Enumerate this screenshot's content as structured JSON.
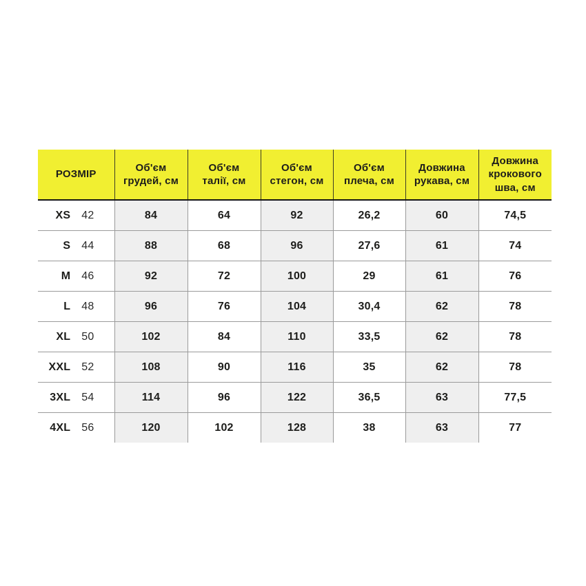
{
  "table": {
    "columns": [
      {
        "label": "РОЗМІР"
      },
      {
        "label": "Об'єм\nгрудей, см"
      },
      {
        "label": "Об'єм\nталії, см"
      },
      {
        "label": "Об'єм\nстегон, см"
      },
      {
        "label": "Об'єм\nплеча, см"
      },
      {
        "label": "Довжина\nрукава, см"
      },
      {
        "label": "Довжина\nкрокового\nшва, см"
      }
    ],
    "rows": [
      {
        "size": "XS",
        "size_num": "42",
        "values": [
          "84",
          "64",
          "92",
          "26,2",
          "60",
          "74,5"
        ]
      },
      {
        "size": "S",
        "size_num": "44",
        "values": [
          "88",
          "68",
          "96",
          "27,6",
          "61",
          "74"
        ]
      },
      {
        "size": "M",
        "size_num": "46",
        "values": [
          "92",
          "72",
          "100",
          "29",
          "61",
          "76"
        ]
      },
      {
        "size": "L",
        "size_num": "48",
        "values": [
          "96",
          "76",
          "104",
          "30,4",
          "62",
          "78"
        ]
      },
      {
        "size": "XL",
        "size_num": "50",
        "values": [
          "102",
          "84",
          "110",
          "33,5",
          "62",
          "78"
        ]
      },
      {
        "size": "XXL",
        "size_num": "52",
        "values": [
          "108",
          "90",
          "116",
          "35",
          "62",
          "78"
        ]
      },
      {
        "size": "3XL",
        "size_num": "54",
        "values": [
          "114",
          "96",
          "122",
          "36,5",
          "63",
          "77,5"
        ]
      },
      {
        "size": "4XL",
        "size_num": "56",
        "values": [
          "120",
          "102",
          "128",
          "38",
          "63",
          "77"
        ]
      }
    ]
  },
  "colors": {
    "header_background": "#f1ef31",
    "shaded_column_background": "#efefef",
    "text": "#1d1d1b",
    "body_border": "#9a9a9a",
    "header_bottom_border": "#161616"
  }
}
